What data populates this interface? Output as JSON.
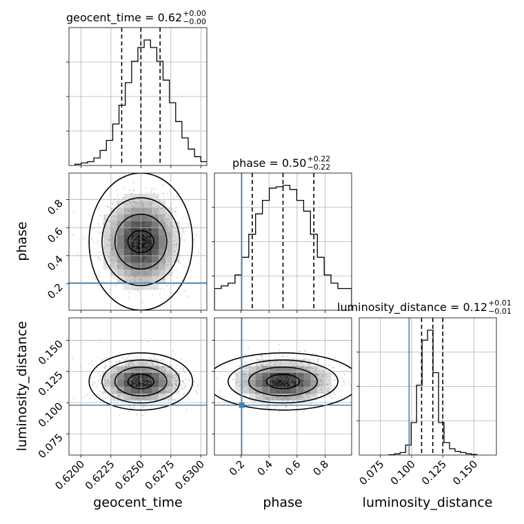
{
  "chart_data": {
    "type": "corner",
    "parameters": [
      {
        "name": "geocent_time",
        "label": "geocent_time",
        "title": {
          "prefix": "geocent_time = 0.62",
          "plus": "+0.00",
          "minus": "−0.00"
        },
        "range": [
          0.619,
          0.6305
        ],
        "ticks": [
          0.62,
          0.6225,
          0.625,
          0.6275,
          0.63
        ],
        "tick_labels": [
          "0.6200",
          "0.6225",
          "0.6250",
          "0.6275",
          "0.6300"
        ],
        "quantiles": [
          0.6234,
          0.625,
          0.6266
        ],
        "hist_x0": 0.6195,
        "hist_dx": 0.000525,
        "hist_counts": [
          0.01,
          0.02,
          0.03,
          0.06,
          0.12,
          0.2,
          0.33,
          0.48,
          0.66,
          0.83,
          0.94,
          1.0,
          0.94,
          0.83,
          0.68,
          0.5,
          0.35,
          0.22,
          0.13,
          0.07,
          0.03,
          0.01
        ],
        "injection": null
      },
      {
        "name": "phase",
        "label": "phase",
        "title": {
          "prefix": "phase = 0.50",
          "plus": "+0.22",
          "minus": "−0.22"
        },
        "range": [
          0.01,
          0.99
        ],
        "ticks": [
          0.2,
          0.4,
          0.6,
          0.8
        ],
        "tick_labels": [
          "0.2",
          "0.4",
          "0.6",
          "0.8"
        ],
        "quantiles": [
          0.28,
          0.5,
          0.72
        ],
        "hist_x0": 0.01,
        "hist_dx": 0.049,
        "hist_counts": [
          0.16,
          0.18,
          0.2,
          0.26,
          0.39,
          0.56,
          0.71,
          0.81,
          0.9,
          0.91,
          0.92,
          0.89,
          0.81,
          0.73,
          0.56,
          0.39,
          0.26,
          0.2,
          0.16,
          0.16
        ],
        "injection": 0.205
      },
      {
        "name": "luminosity_distance",
        "label": "luminosity_distance",
        "title": {
          "prefix": "luminosity_distance = 0.12",
          "plus": "+0.01",
          "minus": "−0.01"
        },
        "range": [
          0.058,
          0.168
        ],
        "ticks": [
          0.075,
          0.1,
          0.125,
          0.15
        ],
        "tick_labels": [
          "0.075",
          "0.100",
          "0.125",
          "0.150"
        ],
        "quantiles": [
          0.108,
          0.117,
          0.125
        ],
        "hist_x0": 0.082,
        "hist_dx": 0.0044,
        "hist_counts": [
          0.003,
          0.01,
          0.02,
          0.08,
          0.26,
          0.56,
          0.92,
          1.0,
          0.66,
          0.26,
          0.1,
          0.05,
          0.03,
          0.02,
          0.01,
          0.005
        ],
        "injection": 0.098
      }
    ],
    "grid": true,
    "injection_color": "#4682b4",
    "point_color": "#7f7f7f"
  }
}
